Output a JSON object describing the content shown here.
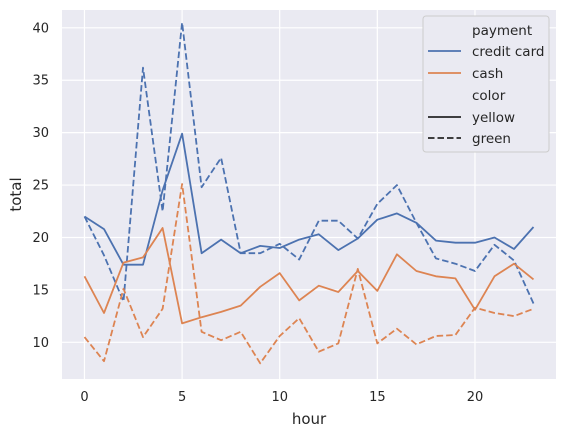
{
  "chart_data": {
    "type": "line",
    "xlabel": "hour",
    "ylabel": "total",
    "xlim": [
      -1.15,
      24.15
    ],
    "ylim": [
      6.5,
      41.7
    ],
    "xticks": [
      0,
      5,
      10,
      15,
      20
    ],
    "yticks": [
      10,
      15,
      20,
      25,
      30,
      35,
      40
    ],
    "grid": true,
    "legend_placement": "upper right",
    "x": [
      0,
      1,
      2,
      3,
      4,
      5,
      6,
      7,
      8,
      9,
      10,
      11,
      12,
      13,
      14,
      15,
      16,
      17,
      18,
      19,
      20,
      21,
      22,
      23
    ],
    "series": [
      {
        "payment": "credit card",
        "color": "yellow",
        "line_color": "#4c72b0",
        "dash": "solid",
        "values": [
          22.0,
          20.8,
          17.4,
          17.4,
          24.5,
          29.9,
          18.5,
          19.8,
          18.5,
          19.2,
          19.0,
          19.8,
          20.3,
          18.8,
          19.9,
          21.7,
          22.3,
          21.4,
          19.7,
          19.5,
          19.5,
          20.0,
          18.9,
          21.0
        ]
      },
      {
        "payment": "credit card",
        "color": "green",
        "line_color": "#4c72b0",
        "dash": "dashed",
        "values": [
          22.0,
          18.3,
          13.9,
          36.2,
          22.5,
          40.5,
          24.8,
          27.6,
          18.5,
          18.5,
          19.4,
          17.9,
          21.6,
          21.6,
          19.9,
          23.2,
          25.0,
          21.4,
          18.0,
          17.5,
          16.8,
          19.3,
          17.8,
          13.7
        ]
      },
      {
        "payment": "cash",
        "color": "yellow",
        "line_color": "#dd8452",
        "dash": "solid",
        "values": [
          16.3,
          12.8,
          17.6,
          18.1,
          20.9,
          11.8,
          12.4,
          12.9,
          13.5,
          15.3,
          16.6,
          14.0,
          15.4,
          14.8,
          16.8,
          14.9,
          18.4,
          16.8,
          16.3,
          16.1,
          13.1,
          16.3,
          17.5,
          16.0
        ]
      },
      {
        "payment": "cash",
        "color": "green",
        "line_color": "#dd8452",
        "dash": "dashed",
        "values": [
          10.5,
          8.2,
          15.1,
          10.5,
          13.2,
          25.1,
          11.0,
          10.2,
          11.0,
          8.0,
          10.6,
          12.3,
          9.1,
          9.9,
          17.0,
          9.9,
          11.3,
          9.8,
          10.6,
          10.7,
          13.3,
          12.8,
          12.5,
          13.2
        ]
      }
    ],
    "legend": {
      "hue_title": "payment",
      "hue_entries": [
        {
          "label": "credit card",
          "line_color": "#4c72b0"
        },
        {
          "label": "cash",
          "line_color": "#dd8452"
        }
      ],
      "style_title": "color",
      "style_entries": [
        {
          "label": "yellow",
          "dash": "solid"
        },
        {
          "label": "green",
          "dash": "dashed"
        }
      ]
    },
    "colors": {
      "plot_background": "#eaeaf2",
      "grid": "#ffffff",
      "legend_background": "#eaeaf2",
      "legend_border": "#cccccc",
      "text": "#262626"
    }
  }
}
